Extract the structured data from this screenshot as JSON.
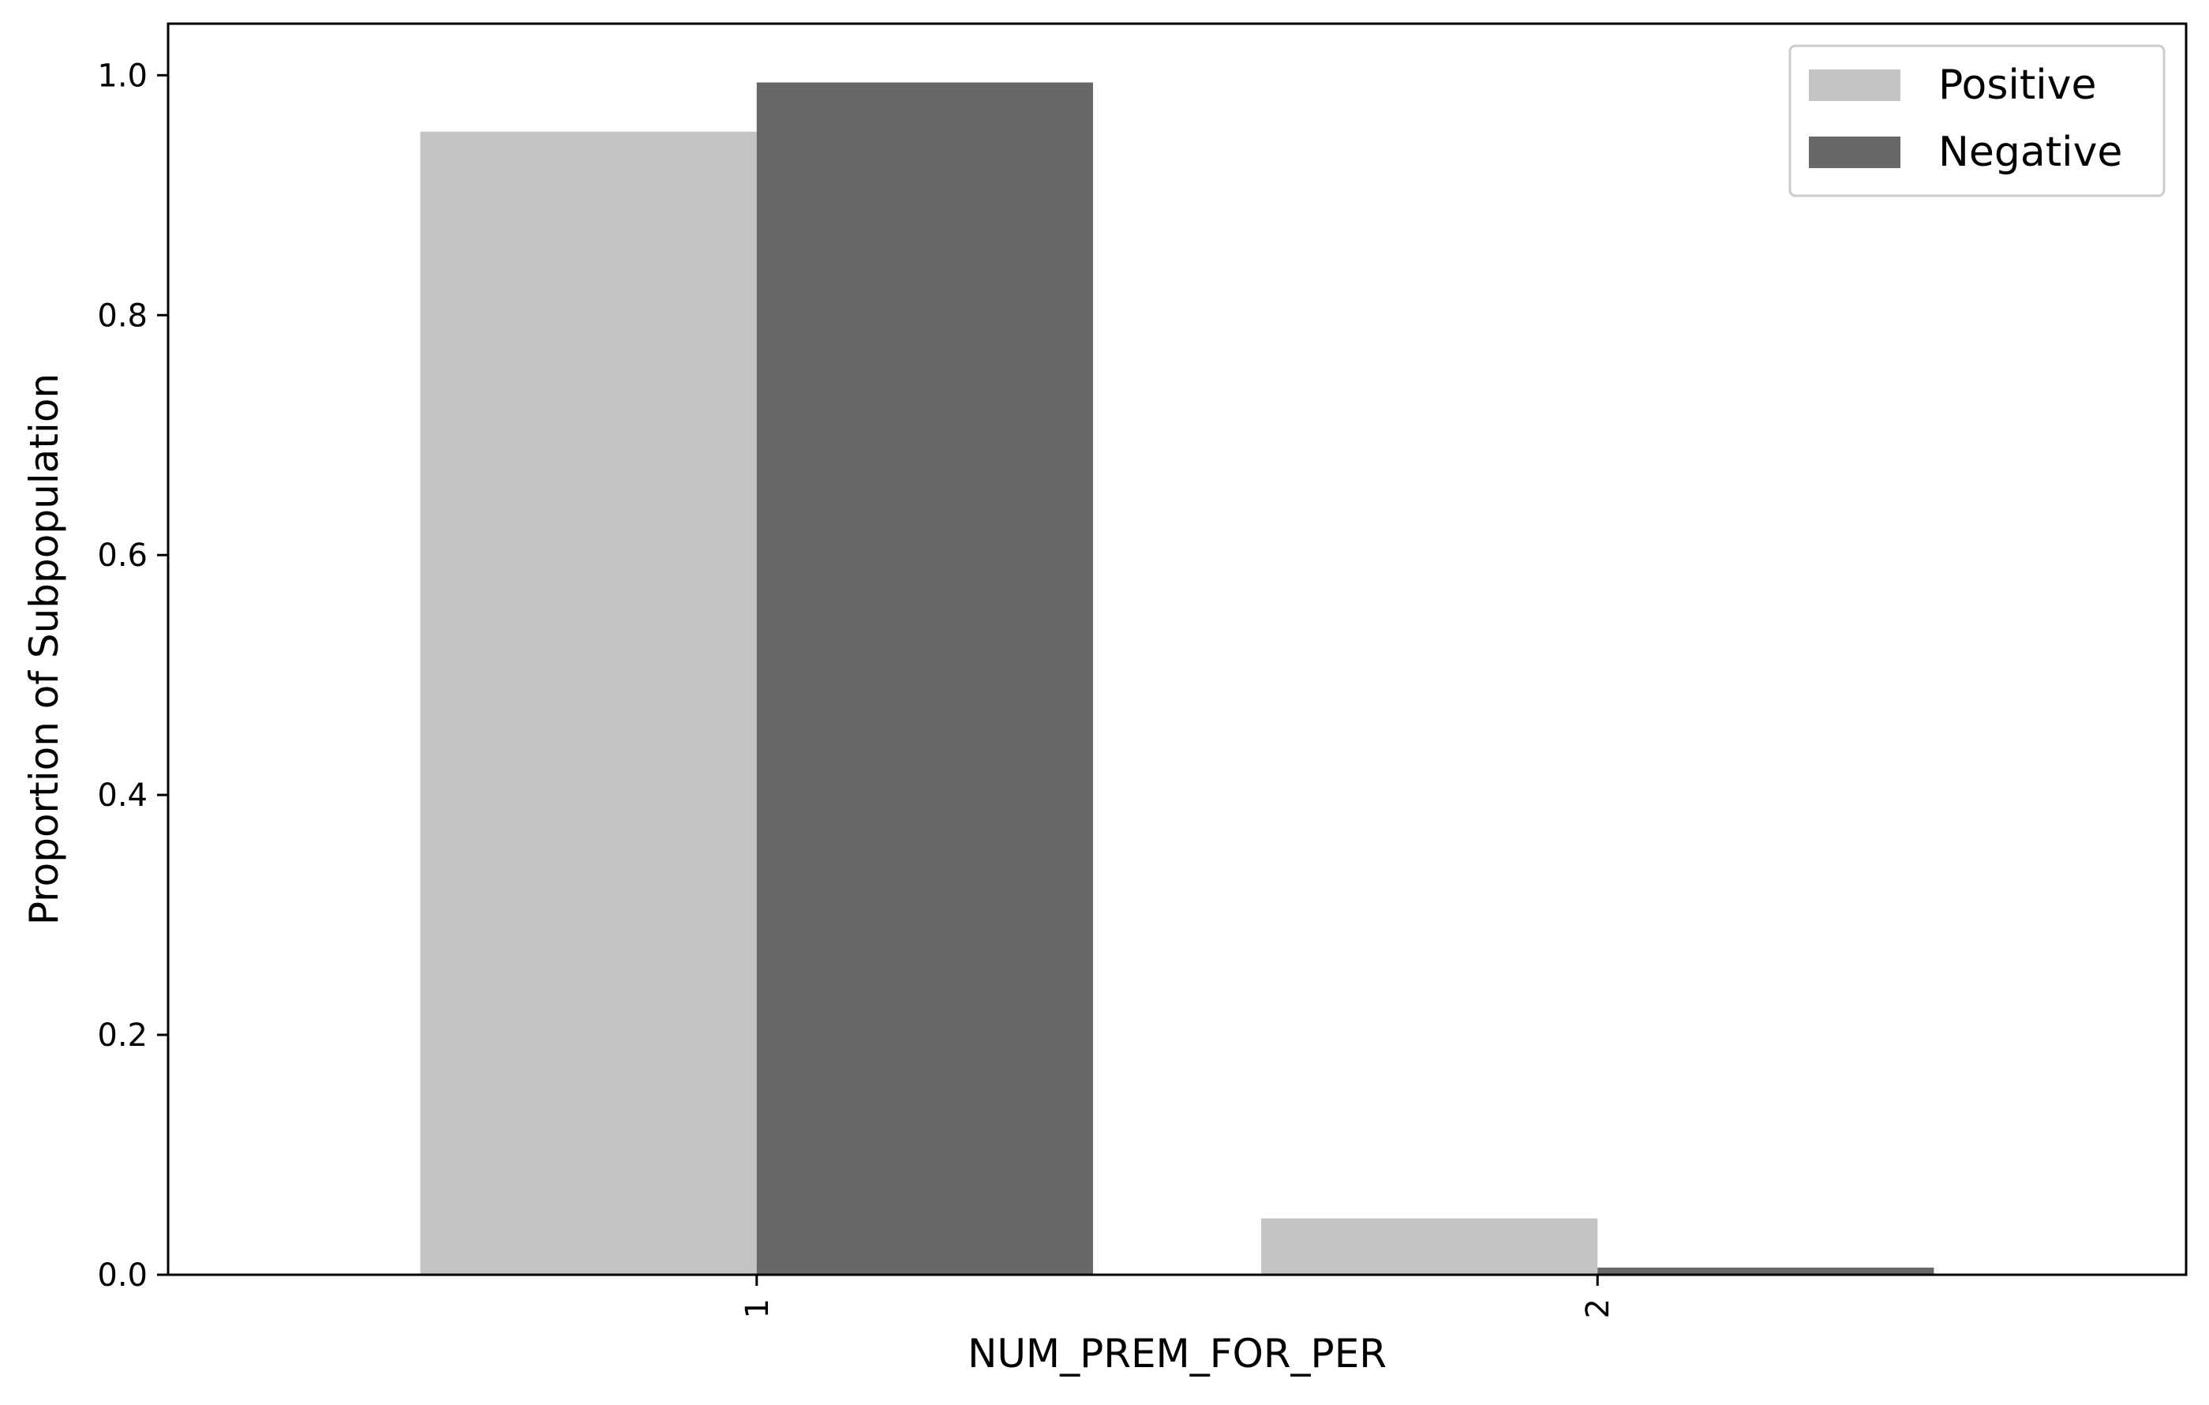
{
  "chart_data": {
    "type": "bar",
    "title": "",
    "xlabel": "NUM_PREM_FOR_PER",
    "ylabel": "Proportion of Subpopulation",
    "categories": [
      "1",
      "2"
    ],
    "series": [
      {
        "name": "Positive",
        "values": [
          0.953,
          0.047
        ],
        "color": "#c4c4c4"
      },
      {
        "name": "Negative",
        "values": [
          0.994,
          0.006
        ],
        "color": "#686868"
      }
    ],
    "ylim": [
      0,
      1.043
    ],
    "yticks": [
      "0.0",
      "0.2",
      "0.4",
      "0.6",
      "0.8",
      "1.0"
    ],
    "ytick_values": [
      0,
      0.2,
      0.4,
      0.6,
      0.8,
      1.0
    ],
    "xtick_rotation_deg": 90,
    "grid": false,
    "legend_position": "top-right"
  }
}
